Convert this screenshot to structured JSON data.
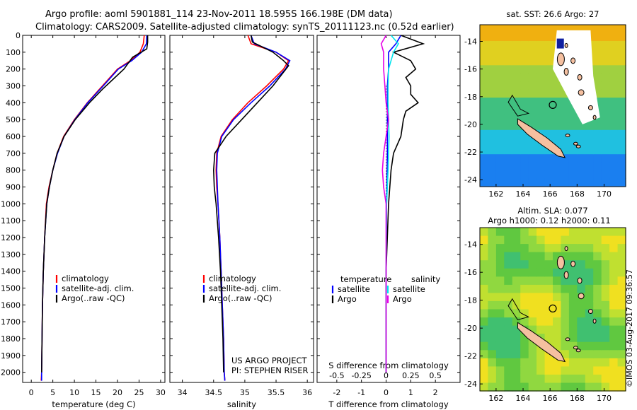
{
  "titles": {
    "line1": "Argo profile: aoml 5901881_114 23-Nov-2011 18.595S 166.198E (DM data)",
    "line2": "Climatology: CARS2009. Satellite-adjusted climatology: synTS_20111123.nc (0.52d earlier)"
  },
  "side_label": "©IMOS 03-Aug-2017 09:36:57",
  "colors": {
    "climatology": "#ff0000",
    "satellite": "#0000ff",
    "argo": "#000000",
    "sal_satellite": "#00e5ee",
    "sal_argo": "#e600e6",
    "land": "#f5c0a0"
  },
  "chart_data": [
    {
      "type": "line",
      "id": "temperature",
      "xlabel": "temperature (deg C)",
      "ylabel": "",
      "xlim": [
        -2,
        31
      ],
      "ylim": [
        2060,
        0
      ],
      "xticks": [
        "0",
        "5",
        "10",
        "15",
        "20",
        "25",
        "30"
      ],
      "yticks": [
        "0",
        "100",
        "200",
        "300",
        "400",
        "500",
        "600",
        "700",
        "800",
        "900",
        "1000",
        "1100",
        "1200",
        "1300",
        "1400",
        "1500",
        "1600",
        "1700",
        "1800",
        "1900",
        "2000"
      ],
      "legend": [
        "climatology",
        "satellite-adj. clim.",
        "Argo(..raw -QC)"
      ],
      "series": [
        {
          "name": "climatology",
          "color": "#ff0000",
          "x": [
            26.2,
            26.0,
            25.2,
            23.0,
            20.0,
            16.5,
            13.0,
            10.0,
            7.5,
            6.0,
            5.0,
            4.1,
            3.5,
            3.1,
            2.8,
            2.6,
            2.5,
            2.4,
            2.3
          ],
          "y": [
            0,
            50,
            100,
            150,
            200,
            300,
            400,
            500,
            600,
            700,
            800,
            900,
            1000,
            1200,
            1400,
            1600,
            1800,
            2000,
            2050
          ]
        },
        {
          "name": "satellite-adj. clim.",
          "color": "#0000ff",
          "x": [
            26.8,
            26.7,
            25.6,
            23.3,
            20.2,
            16.7,
            13.1,
            10.1,
            7.6,
            6.1,
            5.0,
            4.2,
            3.6,
            3.1,
            2.8,
            2.6,
            2.5,
            2.4,
            2.4
          ],
          "y": [
            0,
            50,
            100,
            150,
            200,
            300,
            400,
            500,
            600,
            700,
            800,
            900,
            1000,
            1200,
            1400,
            1600,
            1800,
            2000,
            2050
          ]
        },
        {
          "name": "Argo(..raw -QC)",
          "color": "#000000",
          "x": [
            27.0,
            27.0,
            26.8,
            23.5,
            21.5,
            19.0,
            16.5,
            13.5,
            10.2,
            7.6,
            6.0,
            5.0,
            4.2,
            3.6,
            3.1,
            2.8,
            2.6,
            2.5,
            2.4
          ],
          "y": [
            0,
            40,
            80,
            130,
            200,
            260,
            320,
            400,
            500,
            600,
            700,
            800,
            900,
            1000,
            1200,
            1400,
            1600,
            1800,
            2000
          ]
        }
      ]
    },
    {
      "type": "line",
      "id": "salinity",
      "xlabel": "salinity",
      "ylabel": "",
      "xlim": [
        33.8,
        36.1
      ],
      "ylim": [
        2060,
        0
      ],
      "xticks": [
        "34",
        "34.5",
        "35",
        "35.5",
        "36"
      ],
      "legend": [
        "climatology",
        "satellite-adj. clim.",
        "Argo(..raw -QC)"
      ],
      "annotation": [
        "US ARGO PROJECT",
        "PI: STEPHEN RISER"
      ],
      "series": [
        {
          "name": "climatology",
          "color": "#ff0000",
          "x": [
            35.05,
            35.1,
            35.5,
            35.7,
            35.62,
            35.35,
            35.05,
            34.8,
            34.62,
            34.55,
            34.54,
            34.55,
            34.57,
            34.6,
            34.62,
            34.64,
            34.66,
            34.67,
            34.68
          ],
          "y": [
            0,
            50,
            100,
            150,
            200,
            300,
            400,
            500,
            600,
            700,
            800,
            900,
            1000,
            1200,
            1400,
            1600,
            1800,
            2000,
            2050
          ]
        },
        {
          "name": "satellite-adj. clim.",
          "color": "#0000ff",
          "x": [
            35.1,
            35.15,
            35.5,
            35.72,
            35.65,
            35.4,
            35.1,
            34.82,
            34.63,
            34.56,
            34.55,
            34.56,
            34.57,
            34.6,
            34.62,
            34.64,
            34.66,
            34.67,
            34.68
          ],
          "y": [
            0,
            50,
            100,
            150,
            200,
            300,
            400,
            500,
            600,
            700,
            800,
            900,
            1000,
            1200,
            1400,
            1600,
            1800,
            2000,
            2050
          ]
        },
        {
          "name": "Argo(..raw -QC)",
          "color": "#000000",
          "x": [
            35.1,
            35.12,
            35.45,
            35.62,
            35.7,
            35.45,
            35.2,
            34.95,
            34.7,
            34.52,
            34.5,
            34.51,
            34.54,
            34.58,
            34.61,
            34.63,
            34.65,
            34.66
          ],
          "y": [
            0,
            40,
            100,
            150,
            180,
            300,
            400,
            500,
            600,
            700,
            800,
            900,
            1000,
            1200,
            1400,
            1600,
            1800,
            2000
          ]
        }
      ]
    },
    {
      "type": "line",
      "id": "differences",
      "xlabel": "T difference from climatology",
      "xlabel2": "S difference from climatology",
      "xlim": [
        -2.8,
        3.0
      ],
      "ylim": [
        2060,
        0
      ],
      "xticks": [
        "-2",
        "-1",
        "0",
        "1",
        "2"
      ],
      "xticks2": [
        "-0.5",
        "-0.25",
        "0",
        "0.25",
        "0.5"
      ],
      "legend_headers": [
        "temperature",
        "salinity"
      ],
      "legend": [
        "satellite",
        "Argo",
        "satellite",
        "Argo"
      ],
      "series": [
        {
          "name": "satellite",
          "group": "temperature",
          "color": "#0000ff",
          "x": [
            0.6,
            0.4,
            0.1,
            0.1,
            0.05,
            0.05,
            0.05,
            0.02,
            0.0,
            0.0
          ],
          "y": [
            0,
            50,
            100,
            200,
            300,
            500,
            700,
            1000,
            1500,
            2000
          ]
        },
        {
          "name": "Argo",
          "group": "temperature",
          "color": "#000000",
          "x": [
            0.6,
            1.5,
            0.3,
            1.0,
            1.2,
            0.8,
            1.0,
            1.0,
            1.3,
            0.8,
            0.7,
            0.6,
            0.3,
            0.2,
            0.1,
            0.0,
            0.0,
            0.0
          ],
          "y": [
            0,
            50,
            100,
            150,
            200,
            250,
            300,
            350,
            400,
            450,
            500,
            600,
            700,
            800,
            1000,
            1400,
            1800,
            2000
          ]
        },
        {
          "name": "satellite",
          "group": "salinity",
          "color": "#00e5ee",
          "x": [
            0.2,
            0.5,
            0.3,
            0.1,
            0.08,
            0.08,
            0.1,
            0.12,
            0.1,
            0.08,
            0.05,
            0.02,
            0.0,
            0.0,
            0.0
          ],
          "y": [
            0,
            50,
            100,
            200,
            300,
            400,
            500,
            600,
            700,
            800,
            900,
            1000,
            1400,
            1800,
            2000
          ]
        },
        {
          "name": "Argo",
          "group": "salinity",
          "color": "#e600e6",
          "x": [
            0.0,
            -0.2,
            -0.1,
            -0.1,
            -0.05,
            0.0,
            0.1,
            0.0,
            -0.1,
            -0.15,
            -0.1,
            0.0,
            0.0,
            0.0
          ],
          "y": [
            0,
            50,
            100,
            200,
            300,
            400,
            500,
            600,
            700,
            800,
            900,
            1000,
            1500,
            2000
          ]
        }
      ]
    }
  ],
  "maps": [
    {
      "id": "sst",
      "title": "sat. SST: 26.6 Argo: 27",
      "xticks": [
        "162",
        "164",
        "166",
        "168",
        "170"
      ],
      "yticks": [
        "-14",
        "-16",
        "-18",
        "-20",
        "-22",
        "-24"
      ]
    },
    {
      "id": "sla",
      "title1": "Altim. SLA: 0.077",
      "title2": "Argo h1000: 0.12 h2000: 0.11",
      "xticks": [
        "162",
        "164",
        "166",
        "168",
        "170"
      ],
      "yticks": [
        "-14",
        "-16",
        "-18",
        "-20",
        "-22",
        "-24"
      ]
    }
  ]
}
